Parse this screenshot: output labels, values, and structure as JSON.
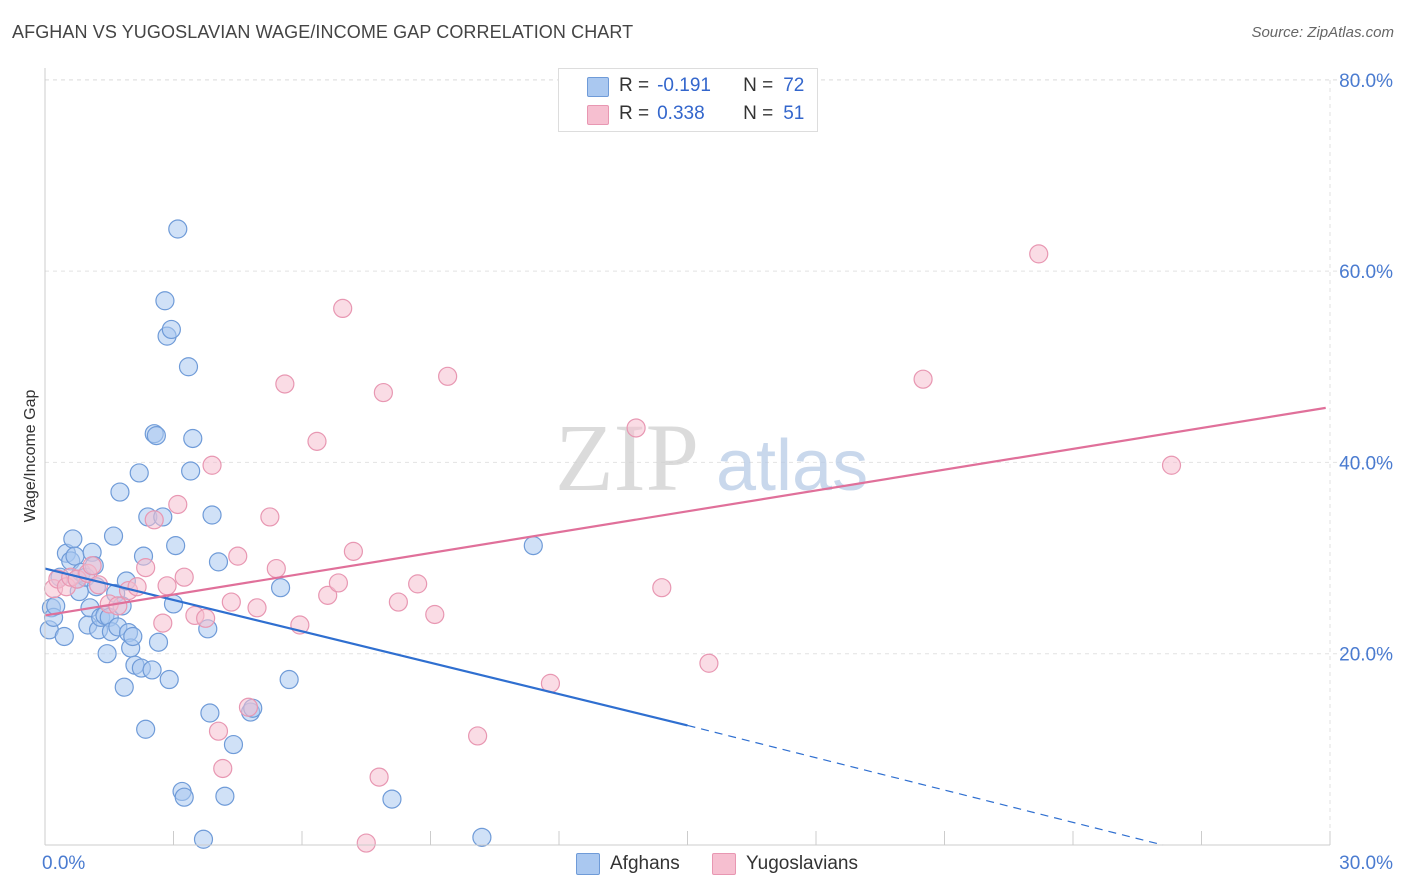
{
  "header": {
    "title": "AFGHAN VS YUGOSLAVIAN WAGE/INCOME GAP CORRELATION CHART",
    "source": "Source: ZipAtlas.com"
  },
  "legend": {
    "items": [
      {
        "r_label": "R =",
        "r_value": "-0.191",
        "n_label": "N =",
        "n_value": "72"
      },
      {
        "r_label": "R =",
        "r_value": "0.338",
        "n_label": "N =",
        "n_value": "51"
      }
    ],
    "series_names": [
      "Afghans",
      "Yugoslavians"
    ]
  },
  "colors": {
    "afghans_fill": "#aac8f0",
    "afghans_stroke": "#6f9bd8",
    "afghans_line": "#2f6fd0",
    "yugoslavians_fill": "#f6bfd0",
    "yugoslavians_stroke": "#e897b2",
    "yugoslavians_line": "#e0709a",
    "axis_label": "#4a7bd0",
    "grid": "#e2e2e2"
  },
  "chart_data": {
    "type": "scatter",
    "title": "AFGHAN VS YUGOSLAVIAN WAGE/INCOME GAP CORRELATION CHART",
    "xlabel": "",
    "ylabel": "Wage/Income Gap",
    "xlim": [
      0,
      30
    ],
    "ylim": [
      0,
      80
    ],
    "x_tick_labels": [
      "0.0%",
      "30.0%"
    ],
    "y_ticks": [
      20,
      40,
      60,
      80
    ],
    "y_tick_labels": [
      "20.0%",
      "40.0%",
      "60.0%",
      "80.0%"
    ],
    "grid": true,
    "watermark": "ZIPatlas",
    "series": [
      {
        "name": "Afghans",
        "r": -0.191,
        "n": 72,
        "trend": {
          "x0": 0,
          "y0": 28.9,
          "x_solid_end": 15,
          "y_solid_end": 12.5,
          "x1": 26.1,
          "y1": 0
        },
        "points": [
          [
            0.1,
            22.5
          ],
          [
            0.15,
            24.8
          ],
          [
            0.2,
            23.8
          ],
          [
            0.25,
            25.0
          ],
          [
            0.35,
            28.0
          ],
          [
            0.45,
            21.8
          ],
          [
            0.5,
            30.5
          ],
          [
            0.6,
            29.7
          ],
          [
            0.65,
            32.0
          ],
          [
            0.7,
            30.2
          ],
          [
            0.75,
            27.8
          ],
          [
            0.8,
            26.5
          ],
          [
            0.85,
            28.5
          ],
          [
            0.95,
            28.0
          ],
          [
            1.0,
            23.0
          ],
          [
            1.05,
            24.8
          ],
          [
            1.1,
            30.6
          ],
          [
            1.15,
            29.2
          ],
          [
            1.2,
            27.0
          ],
          [
            1.25,
            22.5
          ],
          [
            1.3,
            23.8
          ],
          [
            1.4,
            24.0
          ],
          [
            1.45,
            20.0
          ],
          [
            1.5,
            23.8
          ],
          [
            1.55,
            22.3
          ],
          [
            1.6,
            32.3
          ],
          [
            1.65,
            26.3
          ],
          [
            1.7,
            22.8
          ],
          [
            1.75,
            36.9
          ],
          [
            1.8,
            25.0
          ],
          [
            1.85,
            16.5
          ],
          [
            1.9,
            27.6
          ],
          [
            1.95,
            22.2
          ],
          [
            2.0,
            20.6
          ],
          [
            2.05,
            21.8
          ],
          [
            2.1,
            18.8
          ],
          [
            2.2,
            38.9
          ],
          [
            2.25,
            18.5
          ],
          [
            2.3,
            30.2
          ],
          [
            2.35,
            12.1
          ],
          [
            2.4,
            34.3
          ],
          [
            2.5,
            18.3
          ],
          [
            2.55,
            43.0
          ],
          [
            2.6,
            42.8
          ],
          [
            2.65,
            21.2
          ],
          [
            2.75,
            34.3
          ],
          [
            2.8,
            56.9
          ],
          [
            2.85,
            53.2
          ],
          [
            2.9,
            17.3
          ],
          [
            2.95,
            53.9
          ],
          [
            3.0,
            25.2
          ],
          [
            3.05,
            31.3
          ],
          [
            3.1,
            64.4
          ],
          [
            3.2,
            5.6
          ],
          [
            3.25,
            5.0
          ],
          [
            3.35,
            50.0
          ],
          [
            3.4,
            39.1
          ],
          [
            3.45,
            42.5
          ],
          [
            3.7,
            0.6
          ],
          [
            3.8,
            22.6
          ],
          [
            3.85,
            13.8
          ],
          [
            3.9,
            34.5
          ],
          [
            4.05,
            29.6
          ],
          [
            4.2,
            5.1
          ],
          [
            4.4,
            10.5
          ],
          [
            4.8,
            13.9
          ],
          [
            5.5,
            26.9
          ],
          [
            5.7,
            17.3
          ],
          [
            8.1,
            4.8
          ],
          [
            10.2,
            0.8
          ],
          [
            11.4,
            31.3
          ],
          [
            4.85,
            14.3
          ]
        ]
      },
      {
        "name": "Yugoslavians",
        "r": 0.338,
        "n": 51,
        "trend": {
          "x0": 0,
          "y0": 24.0,
          "x1": 29.9,
          "y1": 45.7
        },
        "points": [
          [
            0.2,
            26.8
          ],
          [
            0.3,
            27.8
          ],
          [
            0.5,
            27.0
          ],
          [
            0.6,
            28.0
          ],
          [
            0.75,
            27.8
          ],
          [
            1.0,
            28.4
          ],
          [
            1.1,
            29.2
          ],
          [
            1.25,
            27.2
          ],
          [
            1.5,
            25.2
          ],
          [
            1.7,
            25.0
          ],
          [
            1.95,
            26.6
          ],
          [
            2.15,
            27.0
          ],
          [
            2.35,
            29.0
          ],
          [
            2.55,
            34.0
          ],
          [
            2.75,
            23.2
          ],
          [
            2.85,
            27.1
          ],
          [
            3.1,
            35.6
          ],
          [
            3.25,
            28.0
          ],
          [
            3.5,
            24.0
          ],
          [
            3.75,
            23.7
          ],
          [
            3.9,
            39.7
          ],
          [
            4.05,
            11.9
          ],
          [
            4.15,
            8.0
          ],
          [
            4.35,
            25.4
          ],
          [
            4.5,
            30.2
          ],
          [
            4.75,
            14.4
          ],
          [
            4.95,
            24.8
          ],
          [
            5.25,
            34.3
          ],
          [
            5.4,
            28.9
          ],
          [
            5.6,
            48.2
          ],
          [
            5.95,
            23.0
          ],
          [
            6.35,
            42.2
          ],
          [
            6.6,
            26.1
          ],
          [
            6.85,
            27.4
          ],
          [
            6.95,
            56.1
          ],
          [
            7.2,
            30.7
          ],
          [
            7.5,
            0.2
          ],
          [
            7.8,
            7.1
          ],
          [
            7.9,
            47.3
          ],
          [
            8.25,
            25.4
          ],
          [
            8.7,
            27.3
          ],
          [
            9.1,
            24.1
          ],
          [
            9.4,
            49.0
          ],
          [
            10.1,
            11.4
          ],
          [
            11.8,
            16.9
          ],
          [
            13.8,
            43.6
          ],
          [
            14.4,
            26.9
          ],
          [
            15.5,
            19.0
          ],
          [
            20.5,
            48.7
          ],
          [
            23.2,
            61.8
          ],
          [
            26.3,
            39.7
          ]
        ]
      }
    ]
  }
}
